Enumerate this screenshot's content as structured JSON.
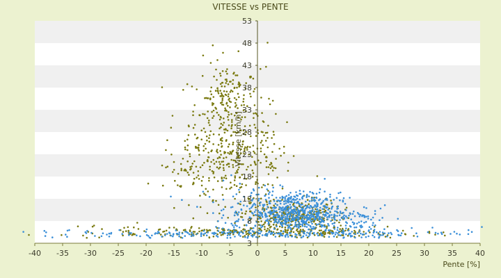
{
  "chart_data": {
    "type": "scatter",
    "title": "VITESSE vs PENTE",
    "xlabel": "Pente [%]",
    "ylabel": "Vitesse [km/h]",
    "xlim": [
      -40,
      40
    ],
    "ylim": [
      3,
      53
    ],
    "xticks": [
      "-40",
      "-35",
      "-30",
      "-25",
      "-20",
      "-15",
      "-10",
      "-5",
      "0",
      "5",
      "10",
      "15",
      "20",
      "25",
      "30",
      "35",
      "40"
    ],
    "yticks": [
      "3",
      "8",
      "13",
      "18",
      "23",
      "28",
      "33",
      "38",
      "43",
      "48",
      "53"
    ],
    "grid": "horizontal alternating bands",
    "colors": {
      "series_olive": "#7a7a10",
      "series_blue": "#3a8fd8",
      "band_gray": "#f0f0f0",
      "plot_bg": "#ffffff",
      "axis": "#7a7a3a"
    },
    "series": [
      {
        "color_key": "series_olive",
        "clusters": [
          {
            "cx": -6,
            "cy": 30,
            "sx": 3.2,
            "sy": 7,
            "n": 260
          },
          {
            "cx": -4,
            "cy": 20,
            "sx": 4.5,
            "sy": 5,
            "n": 160
          },
          {
            "cx": -12,
            "cy": 20,
            "sx": 3,
            "sy": 4,
            "n": 60
          },
          {
            "cx": -5,
            "cy": 38.5,
            "sx": 1.2,
            "sy": 2,
            "n": 40
          },
          {
            "cx": 1.5,
            "cy": 26,
            "sx": 1.2,
            "sy": 7,
            "n": 35
          },
          {
            "cx": 6,
            "cy": 9,
            "sx": 4.5,
            "sy": 2,
            "n": 330
          },
          {
            "cx": 0,
            "cy": 5.5,
            "sx": 14,
            "sy": 0.6,
            "n": 260
          }
        ]
      },
      {
        "color_key": "series_blue",
        "clusters": [
          {
            "cx": 6.5,
            "cy": 10,
            "sx": 4.2,
            "sy": 2.2,
            "n": 560
          },
          {
            "cx": 15,
            "cy": 8,
            "sx": 6,
            "sy": 2,
            "n": 140
          },
          {
            "cx": 0,
            "cy": 5.2,
            "sx": 20,
            "sy": 0.5,
            "n": 240
          },
          {
            "cx": -3,
            "cy": 10,
            "sx": 5,
            "sy": 4,
            "n": 60
          }
        ]
      }
    ]
  }
}
